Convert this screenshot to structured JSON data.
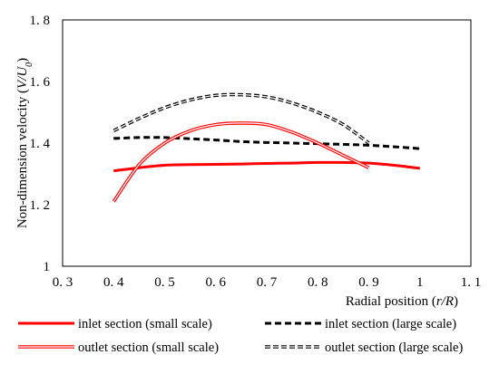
{
  "chart_data": {
    "type": "line",
    "xlabel_main": "Radial position (",
    "xlabel_var": "r/R",
    "xlabel_end": ")",
    "ylabel_main": "Non-dimension velocity (",
    "ylabel_var": "V/U",
    "ylabel_sub": "0",
    "ylabel_end": ")",
    "xlim": [
      0.3,
      1.1
    ],
    "ylim": [
      1.0,
      1.8
    ],
    "x_ticks": [
      0.3,
      0.4,
      0.5,
      0.6,
      0.7,
      0.8,
      0.9,
      1.0,
      1.1
    ],
    "x_tick_labels": [
      "0. 3",
      "0. 4",
      "0. 5",
      "0. 6",
      "0. 7",
      "0. 8",
      "0. 9",
      "1",
      "1. 1"
    ],
    "y_ticks": [
      1.0,
      1.2,
      1.4,
      1.6,
      1.8
    ],
    "y_tick_labels": [
      "1",
      "1. 2",
      "1. 4",
      "1. 6",
      "1. 8"
    ],
    "grid": false,
    "legend_position": "bottom",
    "series": [
      {
        "name": "inlet section (small scale)",
        "style": "solid",
        "color": "#ff0000",
        "x": [
          0.4,
          0.45,
          0.5,
          0.55,
          0.6,
          0.65,
          0.7,
          0.75,
          0.8,
          0.85,
          0.9,
          0.95,
          1.0
        ],
        "y": [
          1.31,
          1.32,
          1.328,
          1.33,
          1.331,
          1.332,
          1.334,
          1.335,
          1.337,
          1.337,
          1.335,
          1.328,
          1.318
        ]
      },
      {
        "name": "inlet section (large scale)",
        "style": "dashed",
        "color": "#000000",
        "x": [
          0.4,
          0.45,
          0.5,
          0.55,
          0.6,
          0.65,
          0.7,
          0.75,
          0.8,
          0.85,
          0.9,
          0.95,
          1.0
        ],
        "y": [
          1.415,
          1.418,
          1.418,
          1.414,
          1.41,
          1.405,
          1.402,
          1.4,
          1.398,
          1.396,
          1.393,
          1.388,
          1.382
        ]
      },
      {
        "name": "outlet section (small scale)",
        "style": "double",
        "color": "#ff0000",
        "x": [
          0.4,
          0.45,
          0.5,
          0.55,
          0.6,
          0.65,
          0.7,
          0.75,
          0.8,
          0.85,
          0.9
        ],
        "y": [
          1.21,
          1.33,
          1.4,
          1.44,
          1.46,
          1.465,
          1.46,
          1.435,
          1.4,
          1.36,
          1.32
        ]
      },
      {
        "name": "outlet section (large scale)",
        "style": "double-dashed",
        "color": "#000000",
        "x": [
          0.4,
          0.45,
          0.5,
          0.55,
          0.6,
          0.65,
          0.7,
          0.75,
          0.8,
          0.85,
          0.9
        ],
        "y": [
          1.44,
          1.48,
          1.515,
          1.54,
          1.555,
          1.557,
          1.55,
          1.53,
          1.5,
          1.46,
          1.4
        ]
      }
    ]
  }
}
